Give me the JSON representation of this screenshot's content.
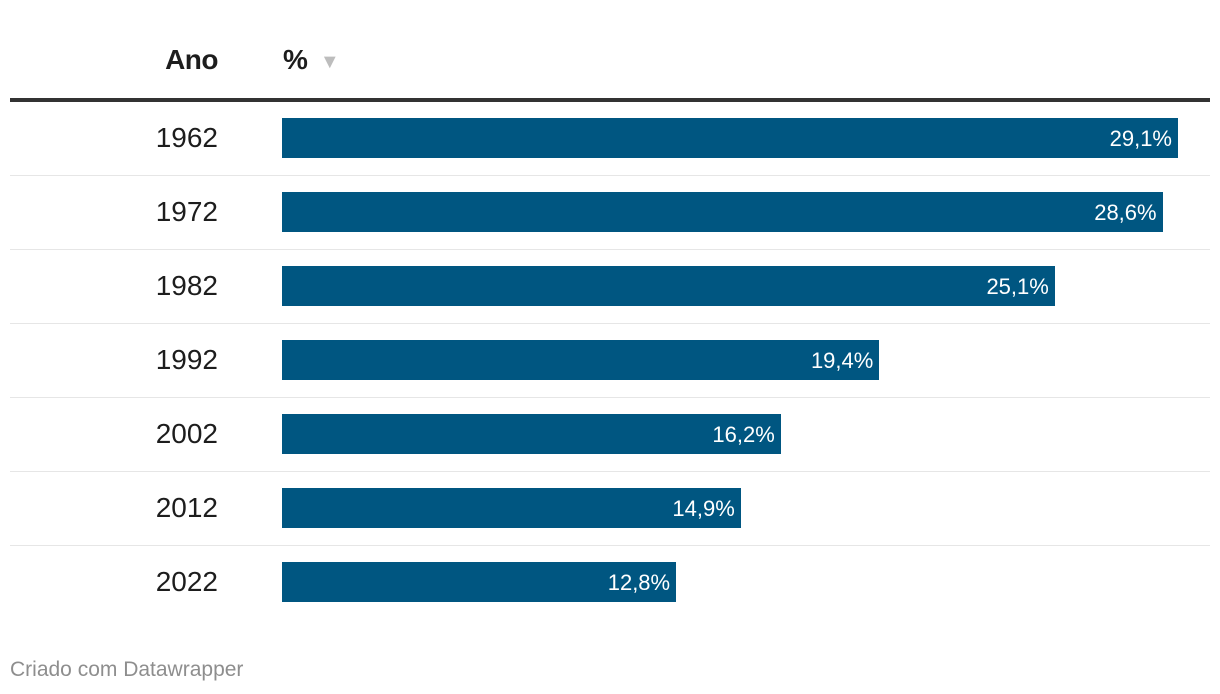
{
  "header": {
    "year_label": "Ano",
    "value_label": "%",
    "sort_icon": "▼"
  },
  "chart_data": {
    "type": "bar",
    "orientation": "horizontal",
    "categories": [
      "1962",
      "1972",
      "1982",
      "1992",
      "2002",
      "2012",
      "2022"
    ],
    "values": [
      29.1,
      28.6,
      25.1,
      19.4,
      16.2,
      14.9,
      12.8
    ],
    "value_labels": [
      "29,1%",
      "28,6%",
      "25,1%",
      "19,4%",
      "16,2%",
      "14,9%",
      "12,8%"
    ],
    "xlim": [
      0,
      29.1
    ],
    "bar_color": "#005681",
    "grid": false
  },
  "footer": {
    "credit": "Criado com Datawrapper"
  }
}
